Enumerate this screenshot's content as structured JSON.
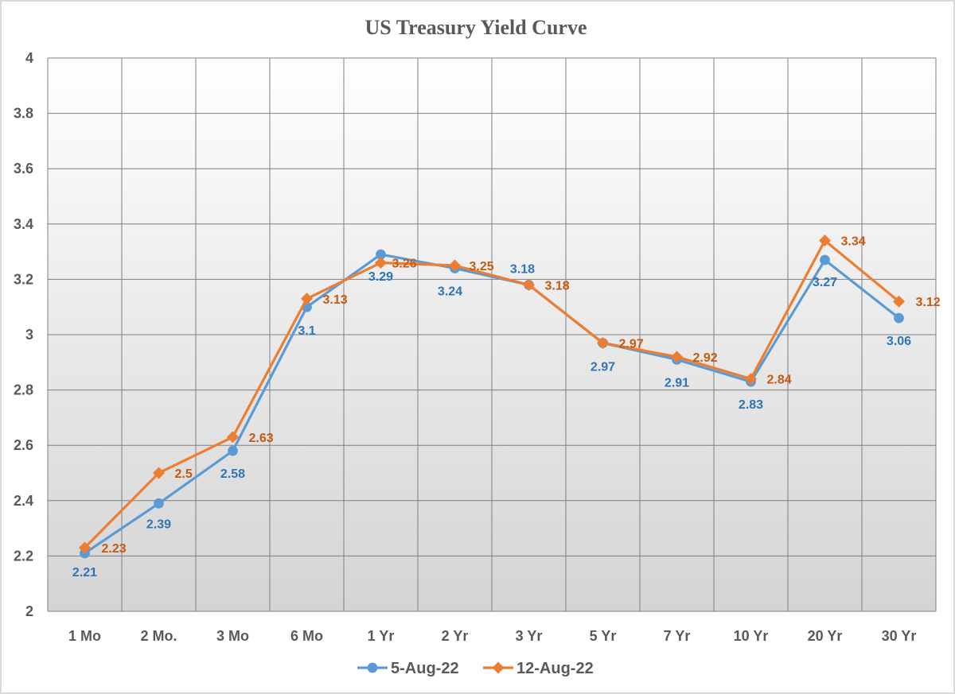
{
  "chart_data": {
    "type": "line",
    "title": "US Treasury Yield Curve",
    "categories": [
      "1 Mo",
      "2 Mo.",
      "3 Mo",
      "6 Mo",
      "1 Yr",
      "2 Yr",
      "3 Yr",
      "5 Yr",
      "7 Yr",
      "10 Yr",
      "20 Yr",
      "30 Yr"
    ],
    "ylim": [
      2,
      4
    ],
    "yticks": [
      "2",
      "2.2",
      "2.4",
      "2.6",
      "2.8",
      "3",
      "3.2",
      "3.4",
      "3.6",
      "3.8",
      "4"
    ],
    "grid": true,
    "legend_position": "bottom",
    "series": [
      {
        "name": "5-Aug-22",
        "color": "#5b9bd5",
        "label_color": "#2e75b6",
        "marker": "circle",
        "values": [
          2.21,
          2.39,
          2.58,
          3.1,
          3.29,
          3.24,
          3.18,
          2.97,
          2.91,
          2.83,
          3.27,
          3.06
        ],
        "labels": [
          "2.21",
          "2.39",
          "2.58",
          "3.1",
          "3.29",
          "3.24",
          "3.18",
          "2.97",
          "2.91",
          "2.83",
          "3.27",
          "3.06"
        ]
      },
      {
        "name": "12-Aug-22",
        "color": "#ed7d31",
        "label_color": "#c55a11",
        "marker": "diamond",
        "values": [
          2.23,
          2.5,
          2.63,
          3.13,
          3.26,
          3.25,
          3.18,
          2.97,
          2.92,
          2.84,
          3.34,
          3.12
        ],
        "labels": [
          "2.23",
          "2.5",
          "2.63",
          "3.13",
          "3.26",
          "3.25",
          "3.18",
          "2.97",
          "2.92",
          "2.84",
          "3.34",
          "3.12"
        ]
      }
    ]
  }
}
